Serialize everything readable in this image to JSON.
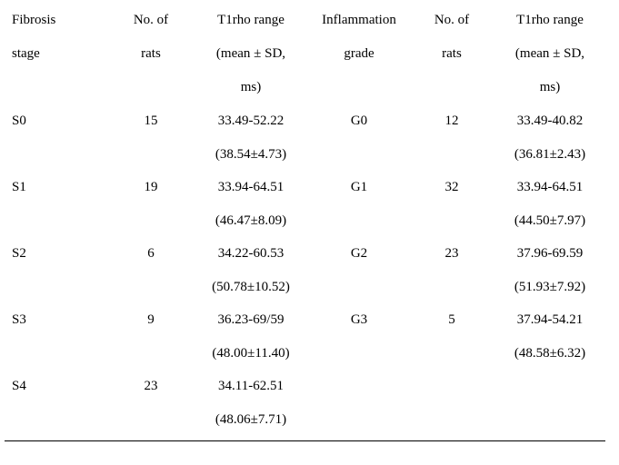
{
  "table": {
    "header": [
      [
        "Fibrosis",
        "stage"
      ],
      [
        "No. of",
        "rats"
      ],
      [
        "T1rho range",
        "(mean ± SD,",
        "ms)"
      ],
      [
        "Inflammation",
        "grade"
      ],
      [
        "No. of",
        "rats"
      ],
      [
        "T1rho range",
        "(mean ± SD,",
        "ms)"
      ]
    ],
    "rows": [
      [
        [
          "S0"
        ],
        [
          "15"
        ],
        [
          "33.49-52.22",
          "(38.54±4.73)"
        ],
        [
          "G0"
        ],
        [
          "12"
        ],
        [
          "33.49-40.82",
          "(36.81±2.43)"
        ]
      ],
      [
        [
          "S1"
        ],
        [
          "19"
        ],
        [
          "33.94-64.51",
          "(46.47±8.09)"
        ],
        [
          "G1"
        ],
        [
          "32"
        ],
        [
          "33.94-64.51",
          "(44.50±7.97)"
        ]
      ],
      [
        [
          "S2"
        ],
        [
          "6"
        ],
        [
          "34.22-60.53",
          "(50.78±10.52)"
        ],
        [
          "G2"
        ],
        [
          "23"
        ],
        [
          "37.96-69.59",
          "(51.93±7.92)"
        ]
      ],
      [
        [
          "S3"
        ],
        [
          "9"
        ],
        [
          "36.23-69/59",
          "(48.00±11.40)"
        ],
        [
          "G3"
        ],
        [
          "5"
        ],
        [
          "37.94-54.21",
          "(48.58±6.32)"
        ]
      ],
      [
        [
          "S4"
        ],
        [
          "23"
        ],
        [
          "34.11-62.51",
          "(48.06±7.71)"
        ]
      ]
    ]
  }
}
